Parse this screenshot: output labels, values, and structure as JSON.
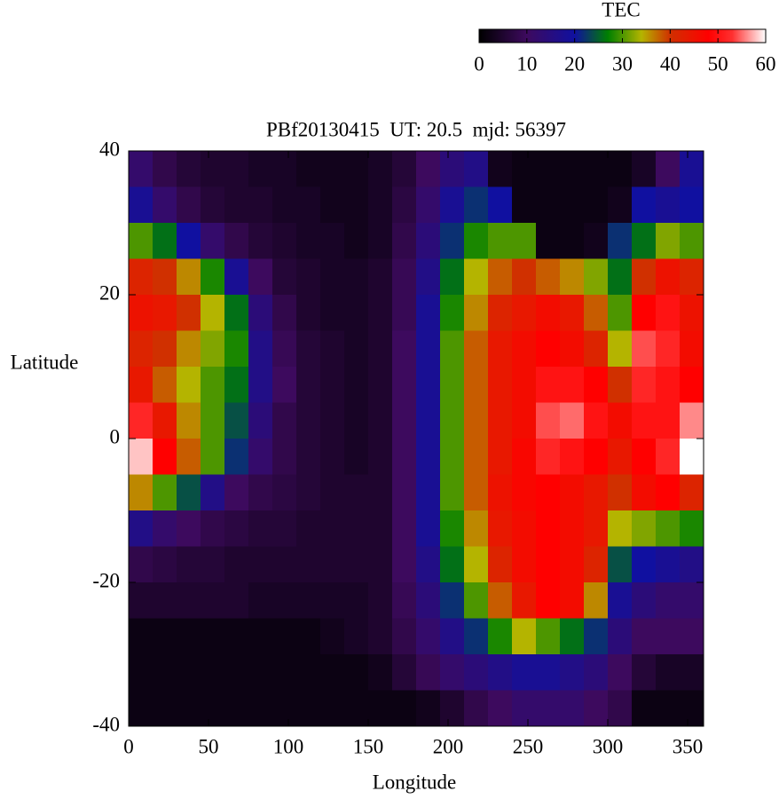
{
  "chart_data": {
    "type": "heatmap",
    "title": "PBf20130415  UT: 20.5  mjd: 56397",
    "xlabel": "Longitude",
    "ylabel": "Latitude",
    "colorbar_label": "TEC",
    "xlim": [
      0,
      360
    ],
    "xticks": [
      0,
      50,
      100,
      150,
      200,
      250,
      300,
      350
    ],
    "ylim": [
      -40,
      40
    ],
    "yticks": [
      -40,
      -20,
      0,
      20,
      40
    ],
    "zlim": [
      0,
      60
    ],
    "zticks": [
      0,
      10,
      20,
      30,
      40,
      50,
      60
    ],
    "colorscale": [
      [
        0,
        "#000000"
      ],
      [
        10,
        "#3d0a5e"
      ],
      [
        20,
        "#1010a0"
      ],
      [
        27,
        "#008000"
      ],
      [
        34,
        "#b4b400"
      ],
      [
        40,
        "#d03000"
      ],
      [
        48,
        "#ff0000"
      ],
      [
        53,
        "#ff3030"
      ],
      [
        60,
        "#ffffff"
      ]
    ],
    "x": [
      7.5,
      22.5,
      37.5,
      52.5,
      67.5,
      82.5,
      97.5,
      112.5,
      127.5,
      142.5,
      157.5,
      172.5,
      187.5,
      202.5,
      217.5,
      232.5,
      247.5,
      262.5,
      277.5,
      292.5,
      307.5,
      322.5,
      337.5,
      352.5
    ],
    "y": [
      37.5,
      32.5,
      27.5,
      22.5,
      17.5,
      12.5,
      7.5,
      2.5,
      -2.5,
      -7.5,
      -12.5,
      -17.5,
      -22.5,
      -27.5,
      -32.5,
      -37.5
    ],
    "z": [
      [
        12,
        8,
        6,
        5,
        5,
        4,
        4,
        3,
        3,
        3,
        4,
        6,
        10,
        14,
        16,
        3,
        2,
        2,
        2,
        2,
        2,
        4,
        10,
        18
      ],
      [
        18,
        12,
        8,
        6,
        5,
        5,
        4,
        4,
        3,
        3,
        4,
        7,
        12,
        18,
        22,
        20,
        2,
        2,
        2,
        2,
        3,
        20,
        18,
        20
      ],
      [
        30,
        26,
        20,
        12,
        8,
        6,
        5,
        4,
        4,
        3,
        4,
        8,
        14,
        22,
        28,
        30,
        30,
        2,
        2,
        3,
        22,
        26,
        32,
        30
      ],
      [
        42,
        40,
        36,
        28,
        18,
        10,
        6,
        5,
        4,
        4,
        5,
        9,
        16,
        26,
        34,
        38,
        40,
        38,
        36,
        32,
        26,
        40,
        45,
        42
      ],
      [
        45,
        44,
        40,
        34,
        26,
        14,
        8,
        5,
        4,
        4,
        5,
        9,
        18,
        28,
        36,
        42,
        44,
        46,
        44,
        38,
        30,
        48,
        50,
        45
      ],
      [
        42,
        40,
        36,
        32,
        28,
        16,
        9,
        6,
        5,
        4,
        5,
        10,
        18,
        30,
        38,
        44,
        46,
        48,
        46,
        42,
        34,
        54,
        52,
        46
      ],
      [
        44,
        38,
        34,
        30,
        26,
        16,
        10,
        6,
        5,
        4,
        5,
        10,
        18,
        30,
        38,
        44,
        46,
        50,
        50,
        48,
        40,
        52,
        50,
        48
      ],
      [
        52,
        44,
        36,
        30,
        24,
        14,
        8,
        6,
        5,
        4,
        5,
        10,
        18,
        30,
        38,
        44,
        46,
        54,
        55,
        50,
        46,
        50,
        50,
        56
      ],
      [
        58,
        48,
        38,
        30,
        22,
        12,
        8,
        6,
        5,
        4,
        5,
        10,
        18,
        30,
        38,
        44,
        47,
        52,
        50,
        48,
        44,
        48,
        52,
        60
      ],
      [
        36,
        30,
        24,
        16,
        10,
        8,
        7,
        6,
        5,
        5,
        5,
        10,
        18,
        30,
        38,
        45,
        47,
        48,
        46,
        44,
        40,
        46,
        48,
        42
      ],
      [
        16,
        12,
        10,
        8,
        7,
        6,
        6,
        5,
        5,
        5,
        5,
        10,
        18,
        28,
        36,
        44,
        46,
        48,
        46,
        44,
        34,
        32,
        30,
        28
      ],
      [
        8,
        7,
        6,
        6,
        5,
        5,
        5,
        5,
        5,
        5,
        5,
        10,
        16,
        26,
        34,
        42,
        46,
        48,
        46,
        42,
        24,
        20,
        18,
        16
      ],
      [
        5,
        5,
        5,
        5,
        5,
        4,
        4,
        4,
        4,
        4,
        5,
        9,
        14,
        22,
        30,
        38,
        44,
        48,
        46,
        36,
        18,
        14,
        12,
        12
      ],
      [
        2,
        2,
        2,
        2,
        2,
        2,
        2,
        2,
        3,
        4,
        5,
        8,
        12,
        16,
        22,
        28,
        34,
        30,
        26,
        22,
        14,
        10,
        10,
        10
      ],
      [
        2,
        2,
        2,
        2,
        2,
        2,
        2,
        2,
        2,
        2,
        3,
        6,
        9,
        12,
        14,
        16,
        18,
        18,
        16,
        14,
        10,
        6,
        4,
        4
      ],
      [
        2,
        2,
        2,
        2,
        2,
        2,
        2,
        2,
        2,
        2,
        2,
        2,
        3,
        5,
        8,
        10,
        12,
        12,
        12,
        10,
        8,
        2,
        2,
        2
      ]
    ]
  }
}
